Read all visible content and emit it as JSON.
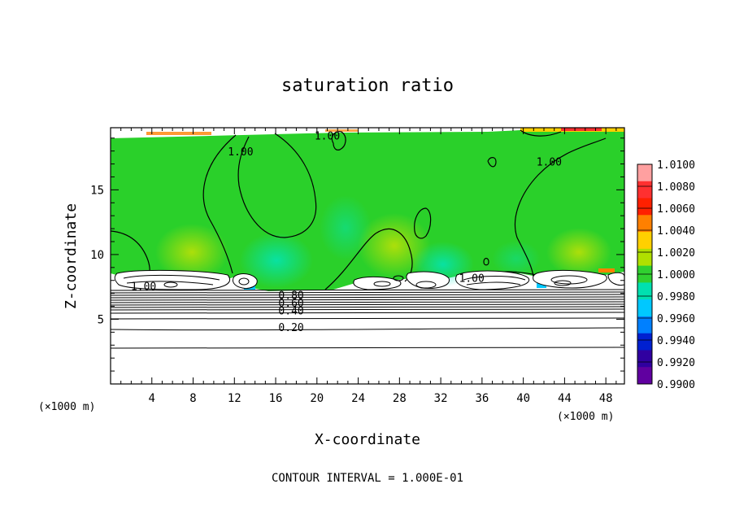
{
  "chart_data": {
    "type": "heatmap",
    "title": "saturation ratio",
    "xlabel": "X-coordinate",
    "ylabel": "Z-coordinate",
    "x_unit": "(×1000 m)",
    "xlim": [
      0,
      49.8
    ],
    "ylim": [
      0,
      19.8
    ],
    "x_ticks": [
      4,
      8,
      12,
      16,
      20,
      24,
      28,
      32,
      36,
      40,
      44,
      48
    ],
    "y_ticks": [
      5,
      10,
      15
    ],
    "colorbar": {
      "levels": [
        "1.0100",
        "1.0080",
        "1.0060",
        "1.0040",
        "1.0020",
        "1.0000",
        "0.9980",
        "0.9960",
        "0.9940",
        "0.9920",
        "0.9900"
      ],
      "colors": [
        "#ffa0a0",
        "#ff3030",
        "#ff2000",
        "#ff8000",
        "#ffd000",
        "#b0e000",
        "#30d030",
        "#00e0b0",
        "#00c8ff",
        "#0080ff",
        "#0020d0",
        "#3000a0",
        "#6000a0"
      ]
    },
    "contour_labels": [
      {
        "text": "1.00",
        "x": 12.6,
        "z": 17.8
      },
      {
        "text": "1.00",
        "x": 21.0,
        "z": 19.0
      },
      {
        "text": "1.00",
        "x": 42.5,
        "z": 17.0
      },
      {
        "text": "1.00",
        "x": 3.2,
        "z": 7.4
      },
      {
        "text": "1.00",
        "x": 35.0,
        "z": 8.0
      },
      {
        "text": "0.80",
        "x": 17.5,
        "z": 6.7
      },
      {
        "text": "0.60",
        "x": 17.5,
        "z": 6.1
      },
      {
        "text": "0.40",
        "x": 17.5,
        "z": 5.5
      },
      {
        "text": "0.20",
        "x": 17.5,
        "z": 4.2
      }
    ],
    "contour_interval": "CONTOUR INTERVAL = 1.000E-01"
  }
}
